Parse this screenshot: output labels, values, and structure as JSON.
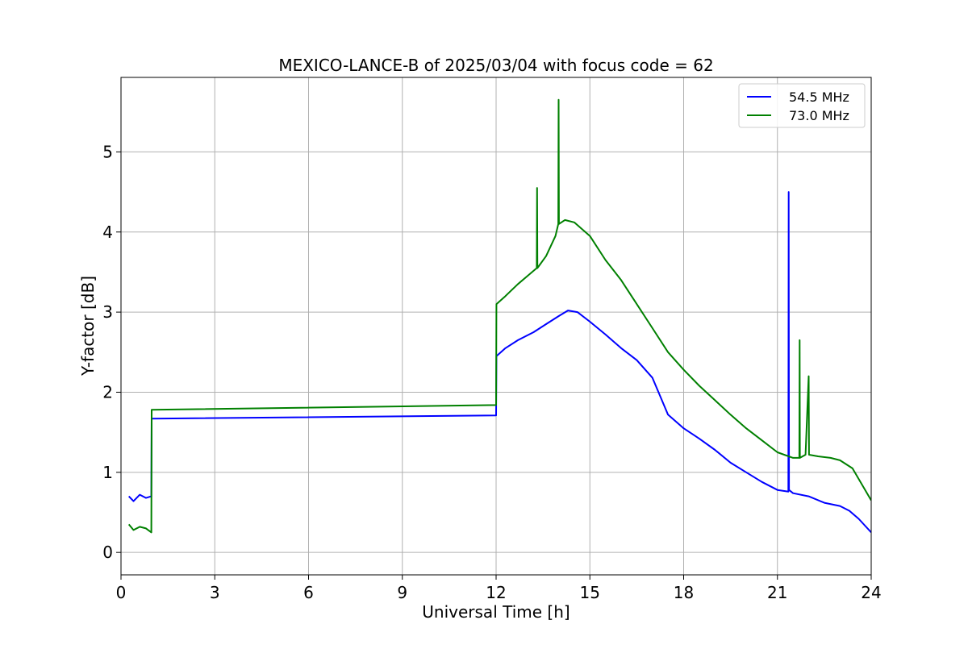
{
  "chart_data": {
    "type": "line",
    "title": "MEXICO-LANCE-B of 2025/03/04 with focus code = 62",
    "xlabel": "Universal Time [h]",
    "ylabel": "Y-factor [dB]",
    "xlim": [
      0,
      24
    ],
    "ylim": [
      -0.28,
      5.93
    ],
    "xticks": [
      0,
      3,
      6,
      9,
      12,
      15,
      18,
      21,
      24
    ],
    "yticks": [
      0,
      1,
      2,
      3,
      4,
      5
    ],
    "grid": true,
    "legend_position": "top-right",
    "series": [
      {
        "name": "54.5 MHz",
        "color": "#0000ff",
        "x": [
          0.25,
          0.4,
          0.6,
          0.8,
          0.97,
          0.98,
          12.0,
          12.01,
          12.3,
          12.7,
          13.2,
          13.6,
          14.0,
          14.3,
          14.6,
          15.0,
          15.5,
          16.0,
          16.5,
          17.0,
          17.5,
          18.0,
          18.5,
          19.0,
          19.5,
          20.0,
          20.5,
          21.0,
          21.35,
          21.36,
          21.37,
          21.5,
          22.0,
          22.5,
          23.0,
          23.3,
          23.6,
          24.0
        ],
        "y": [
          0.7,
          0.64,
          0.72,
          0.68,
          0.7,
          1.67,
          1.71,
          2.45,
          2.55,
          2.65,
          2.75,
          2.85,
          2.95,
          3.02,
          3.0,
          2.88,
          2.72,
          2.55,
          2.4,
          2.18,
          1.72,
          1.55,
          1.42,
          1.28,
          1.12,
          1.0,
          0.88,
          0.78,
          0.76,
          4.5,
          0.78,
          0.74,
          0.7,
          0.62,
          0.58,
          0.52,
          0.42,
          0.25
        ]
      },
      {
        "name": "73.0 MHz",
        "color": "#008000",
        "x": [
          0.25,
          0.4,
          0.6,
          0.8,
          0.97,
          0.98,
          12.0,
          12.01,
          12.3,
          12.7,
          13.0,
          13.3,
          13.31,
          13.32,
          13.6,
          13.9,
          13.99,
          14.0,
          14.01,
          14.2,
          14.5,
          15.0,
          15.5,
          16.0,
          16.5,
          17.0,
          17.5,
          18.0,
          18.5,
          19.0,
          19.5,
          20.0,
          20.5,
          21.0,
          21.5,
          21.7,
          21.71,
          21.72,
          21.9,
          22.0,
          22.01,
          22.3,
          22.7,
          23.0,
          23.4,
          23.7,
          24.0
        ],
        "y": [
          0.35,
          0.28,
          0.32,
          0.3,
          0.25,
          1.78,
          1.84,
          3.1,
          3.2,
          3.35,
          3.45,
          3.55,
          4.55,
          3.55,
          3.7,
          3.95,
          4.1,
          5.65,
          4.1,
          4.15,
          4.12,
          3.95,
          3.65,
          3.4,
          3.1,
          2.8,
          2.5,
          2.28,
          2.08,
          1.9,
          1.72,
          1.55,
          1.4,
          1.25,
          1.18,
          1.18,
          2.65,
          1.18,
          1.22,
          2.2,
          1.22,
          1.2,
          1.18,
          1.15,
          1.05,
          0.85,
          0.65
        ]
      }
    ]
  }
}
